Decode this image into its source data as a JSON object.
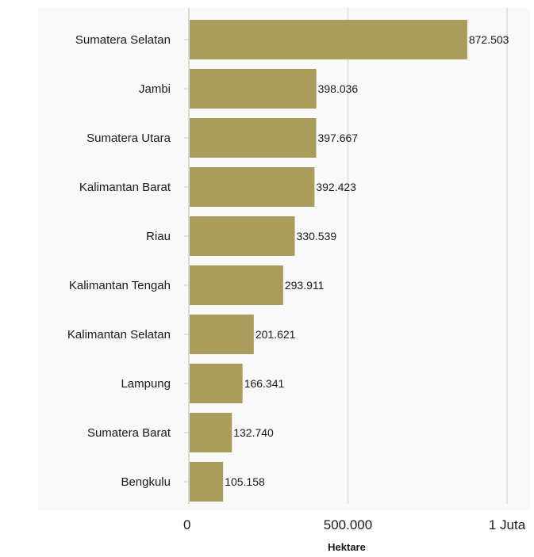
{
  "chart_data": {
    "type": "bar",
    "orientation": "horizontal",
    "categories": [
      "Sumatera Selatan",
      "Jambi",
      "Sumatera Utara",
      "Kalimantan Barat",
      "Riau",
      "Kalimantan Tengah",
      "Kalimantan Selatan",
      "Lampung",
      "Sumatera Barat",
      "Bengkulu"
    ],
    "values": [
      872503,
      398036,
      397667,
      392423,
      330539,
      293911,
      201621,
      166341,
      132740,
      105158
    ],
    "value_labels": [
      "872.503",
      "398.036",
      "397.667",
      "392.423",
      "330.539",
      "293.911",
      "201.621",
      "166.341",
      "132.740",
      "105.158"
    ],
    "xlabel": "Hektare",
    "xlim": [
      0,
      1000000
    ],
    "xticks": [
      0,
      500000,
      1000000
    ],
    "xtick_labels": [
      "0",
      "500.000",
      "1 Juta"
    ],
    "grid": "vertical",
    "bar_color": "#aa9d5b",
    "grid_color": "#e4e4e4",
    "background_color": "#f9f9f9"
  }
}
